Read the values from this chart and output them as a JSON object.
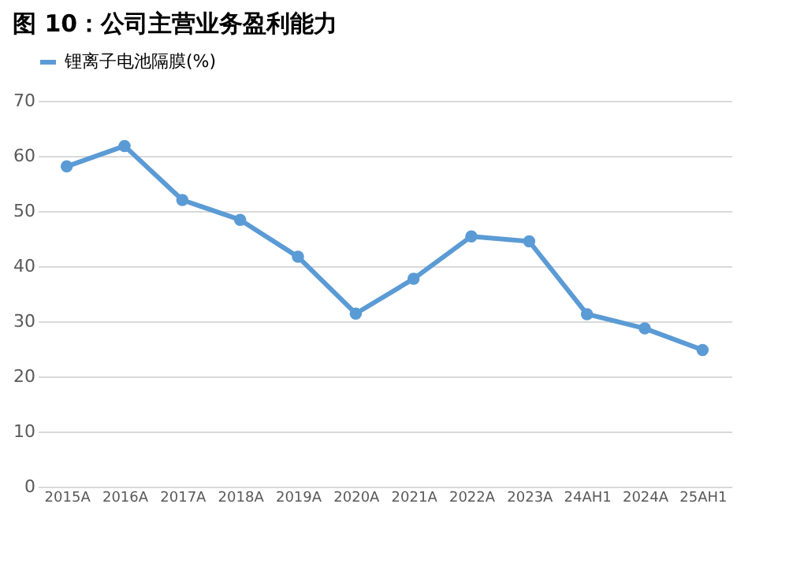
{
  "chart_data": {
    "type": "line",
    "title": "图 10：公司主营业务盈利能力",
    "categories": [
      "2015A",
      "2016A",
      "2017A",
      "2018A",
      "2019A",
      "2020A",
      "2021A",
      "2022A",
      "2023A",
      "24AH1",
      "2024A",
      "25AH1"
    ],
    "series": [
      {
        "name": "锂离子电池隔膜(%)",
        "color": "#5b9bd5",
        "values": [
          58.1,
          61.8,
          52.0,
          48.4,
          41.7,
          31.4,
          37.7,
          45.4,
          44.5,
          31.3,
          28.7,
          24.8
        ]
      }
    ],
    "ylim": [
      0,
      70
    ],
    "yticks": [
      0,
      10,
      20,
      30,
      40,
      50,
      60,
      70
    ],
    "grid": "y",
    "legend": "top",
    "marker": "circle",
    "line_style": "solid"
  }
}
